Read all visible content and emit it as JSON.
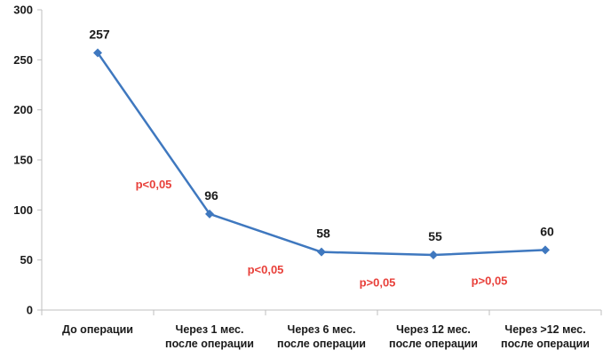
{
  "chart_data": {
    "type": "line",
    "title": "",
    "xlabel": "",
    "ylabel": "",
    "categories": [
      [
        "До операции"
      ],
      [
        "Через 1 мес.",
        "после операции"
      ],
      [
        "Через 6 мес.",
        "после операции"
      ],
      [
        "Через 12 мес.",
        "после операции"
      ],
      [
        "Через >12 мес.",
        "после операции"
      ]
    ],
    "series": [
      {
        "values": [
          257,
          96,
          58,
          55,
          60
        ]
      }
    ],
    "data_labels": [
      "257",
      "96",
      "58",
      "55",
      "60"
    ],
    "ylim": [
      0,
      300
    ],
    "yticks": [
      "0",
      "50",
      "100",
      "150",
      "200",
      "250",
      "300"
    ],
    "grid": false,
    "legend": "none",
    "annotations": [
      {
        "text": "p<0,05",
        "between": [
          0,
          1
        ],
        "y": 125
      },
      {
        "text": "p<0,05",
        "between": [
          1,
          2
        ],
        "y": 40
      },
      {
        "text": "p>0,05",
        "between": [
          2,
          3
        ],
        "y": 27
      },
      {
        "text": "p>0,05",
        "between": [
          3,
          4
        ],
        "y": 29
      }
    ],
    "colors": {
      "line": "#3f78bf",
      "annotation": "#e8403a",
      "axis": "#bfbfbf"
    }
  }
}
